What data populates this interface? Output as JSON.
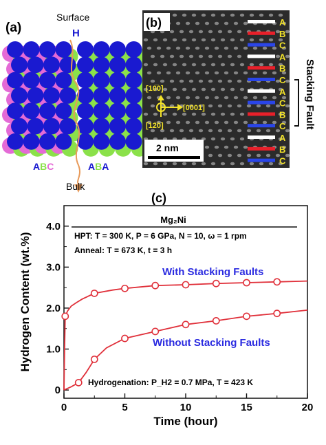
{
  "panel_a": {
    "label": "(a)",
    "surface_label": "Surface",
    "bulk_label": "Bulk",
    "h_label": "H",
    "left_stack": [
      "A",
      "B",
      "C"
    ],
    "right_stack": [
      "A",
      "B",
      "A"
    ],
    "colors": {
      "A": "#1a1ad0",
      "B": "#8be14a",
      "C": "#e46ad6",
      "h_arrow": "#e89a5a"
    }
  },
  "panel_b": {
    "label": "(b)",
    "stacking_letters": [
      "A",
      "B",
      "C",
      "A",
      "B",
      "C",
      "A",
      "C",
      "B",
      "C",
      "A",
      "B",
      "C"
    ],
    "stacking_colors": [
      "#ffffff",
      "#e8202a",
      "#2a45e8",
      "#ffffff",
      "#e8202a",
      "#2a45e8",
      "#ffffff",
      "#2a45e8",
      "#e8202a",
      "#2a45e8",
      "#ffffff",
      "#e8202a",
      "#2a45e8"
    ],
    "side_label": "Stacking Fault",
    "direction_up": "[10̅0]",
    "direction_right": "[0001]",
    "direction_down": "[̅12̅0]",
    "scale_bar": "2 nm"
  },
  "panel_c": {
    "label": "(c)",
    "box_title": "Mg₂Ni",
    "box_line1": "HPT: T = 300 K, P = 6 GPa, N = 10, ω = 1 rpm",
    "box_line2": "Anneal: T = 673 K, t = 3 h",
    "bottom_note": "Hydrogenation: P_H2 = 0.7 MPa, T = 423 K"
  },
  "chart_data": {
    "type": "line",
    "xlabel": "Time (hour)",
    "ylabel": "Hydrogen Content (wt.%)",
    "xlim": [
      0,
      20
    ],
    "ylim": [
      -0.2,
      4.5
    ],
    "xticks": [
      0,
      5,
      10,
      15,
      20
    ],
    "yticks": [
      0,
      1.0,
      2.0,
      3.0,
      4.0
    ],
    "ytick_labels": [
      "0",
      "1.0",
      "2.0",
      "3.0",
      "4.0"
    ],
    "series": [
      {
        "name": "With Stacking Faults",
        "color": "#e0303a",
        "markers": [
          [
            0.1,
            1.8
          ],
          [
            2.5,
            2.36
          ],
          [
            5,
            2.48
          ],
          [
            7.5,
            2.55
          ],
          [
            10,
            2.57
          ],
          [
            12.5,
            2.6
          ],
          [
            15,
            2.62
          ],
          [
            17.5,
            2.64
          ]
        ],
        "curve": [
          [
            0,
            0
          ],
          [
            0.05,
            1.0
          ],
          [
            0.1,
            1.8
          ],
          [
            0.3,
            1.93
          ],
          [
            0.6,
            2.05
          ],
          [
            1,
            2.13
          ],
          [
            1.5,
            2.22
          ],
          [
            2.5,
            2.36
          ],
          [
            4,
            2.44
          ],
          [
            5,
            2.48
          ],
          [
            7.5,
            2.55
          ],
          [
            10,
            2.57
          ],
          [
            12.5,
            2.6
          ],
          [
            15,
            2.62
          ],
          [
            17.5,
            2.64
          ],
          [
            20,
            2.66
          ]
        ]
      },
      {
        "name": "Without Stacking Faults",
        "color": "#e0303a",
        "markers": [
          [
            1.2,
            0.18
          ],
          [
            2.5,
            0.75
          ],
          [
            5,
            1.26
          ],
          [
            7.5,
            1.43
          ],
          [
            10,
            1.6
          ],
          [
            12.5,
            1.69
          ],
          [
            15,
            1.8
          ],
          [
            17.5,
            1.87
          ]
        ],
        "curve": [
          [
            0,
            0
          ],
          [
            0.6,
            0.08
          ],
          [
            1.2,
            0.18
          ],
          [
            1.8,
            0.42
          ],
          [
            2.5,
            0.75
          ],
          [
            3.5,
            1.03
          ],
          [
            5,
            1.26
          ],
          [
            7.5,
            1.43
          ],
          [
            10,
            1.6
          ],
          [
            12.5,
            1.69
          ],
          [
            15,
            1.8
          ],
          [
            17.5,
            1.87
          ],
          [
            20,
            1.95
          ]
        ]
      }
    ]
  }
}
